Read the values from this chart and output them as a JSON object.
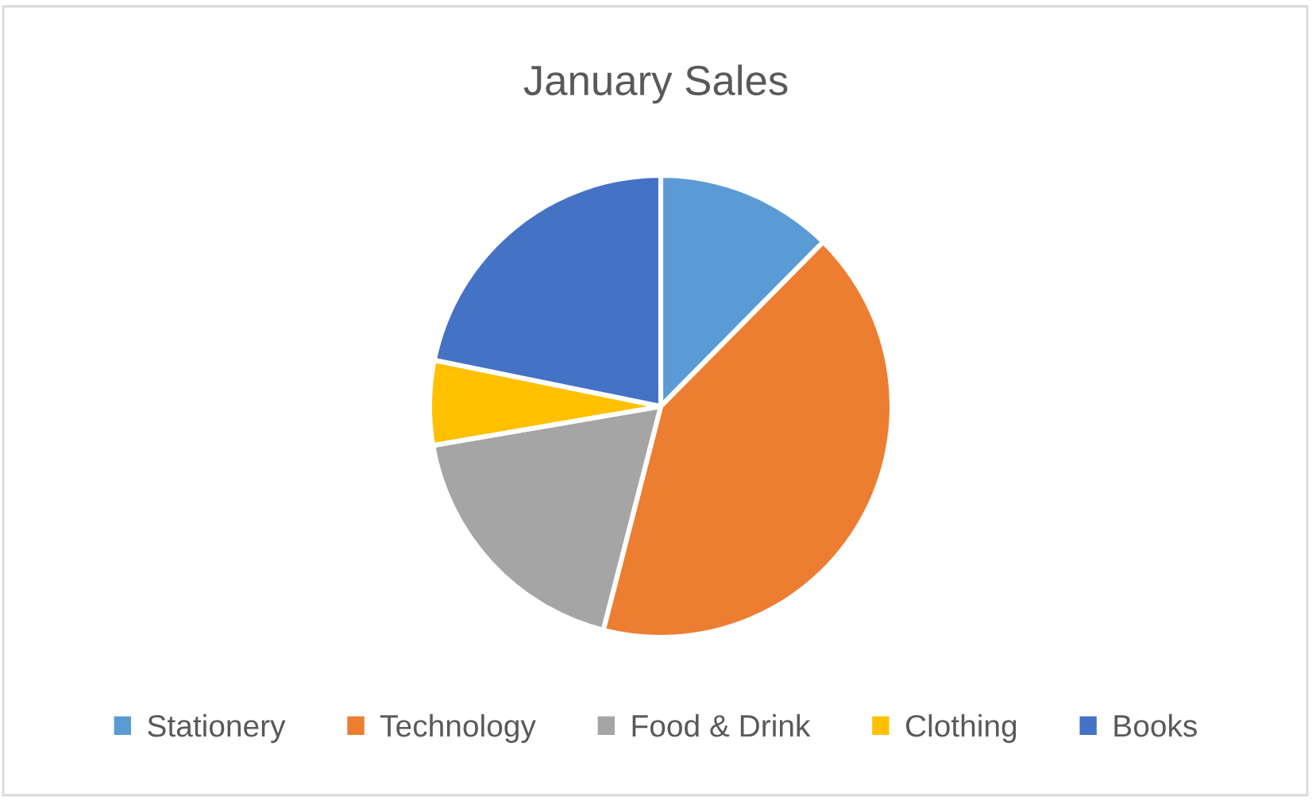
{
  "chart_data": {
    "type": "pie",
    "title": "January Sales",
    "categories": [
      "Stationery",
      "Technology",
      "Food & Drink",
      "Clothing",
      "Books"
    ],
    "values": [
      12.4,
      41.6,
      18.3,
      5.9,
      21.8
    ],
    "colors": [
      "#5b9bd5",
      "#ed7d31",
      "#a5a5a5",
      "#ffc000",
      "#4472c4"
    ],
    "legend": "bottom"
  }
}
